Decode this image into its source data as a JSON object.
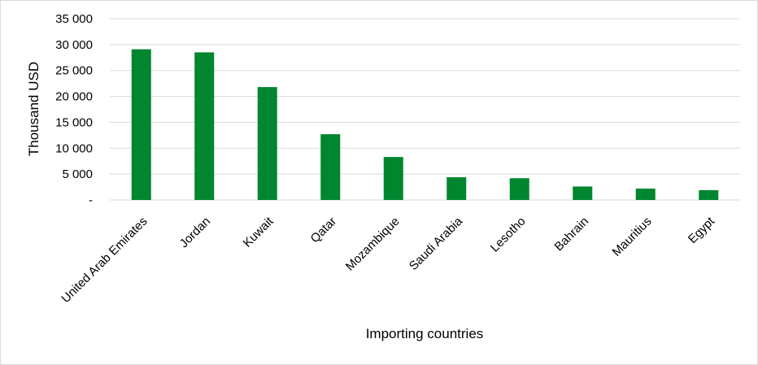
{
  "chart_data": {
    "type": "bar",
    "title": "",
    "xlabel": "Importing countries",
    "ylabel": "Thousand USD",
    "categories": [
      "United Arab Emirates",
      "Jordan",
      "Kuwait",
      "Qatar",
      "Mozambique",
      "Saudi Arabia",
      "Lesotho",
      "Bahrain",
      "Mauritius",
      "Egypt"
    ],
    "values": [
      29100,
      28500,
      21800,
      12700,
      8300,
      4400,
      4200,
      2600,
      2200,
      1900
    ],
    "ylim": [
      0,
      35000
    ],
    "yticks": [
      0,
      5000,
      10000,
      15000,
      20000,
      25000,
      30000,
      35000
    ],
    "ytick_labels": [
      "-",
      "5 000",
      "10 000",
      "15 000",
      "20 000",
      "25 000",
      "30 000",
      "35 000"
    ],
    "grid": true,
    "bar_color": "#00862f",
    "grid_color": "#d9d9d9"
  }
}
